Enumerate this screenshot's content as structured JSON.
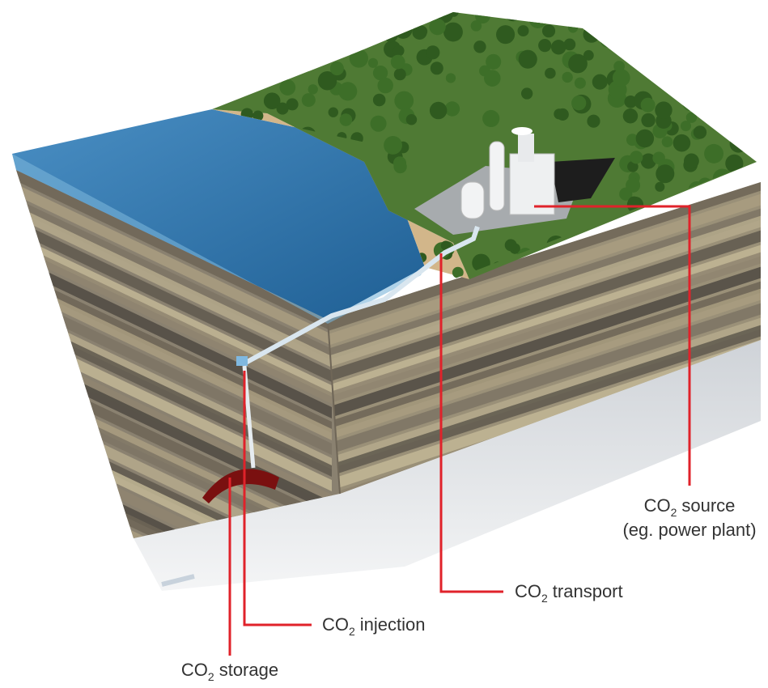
{
  "labels": [
    {
      "chem": "CO",
      "sub": "2",
      "text": "source",
      "note": "(eg. power plant)"
    },
    {
      "chem": "CO",
      "sub": "2",
      "text": "transport"
    },
    {
      "chem": "CO",
      "sub": "2",
      "text": "injection"
    },
    {
      "chem": "CO",
      "sub": "2",
      "text": "storage"
    }
  ]
}
